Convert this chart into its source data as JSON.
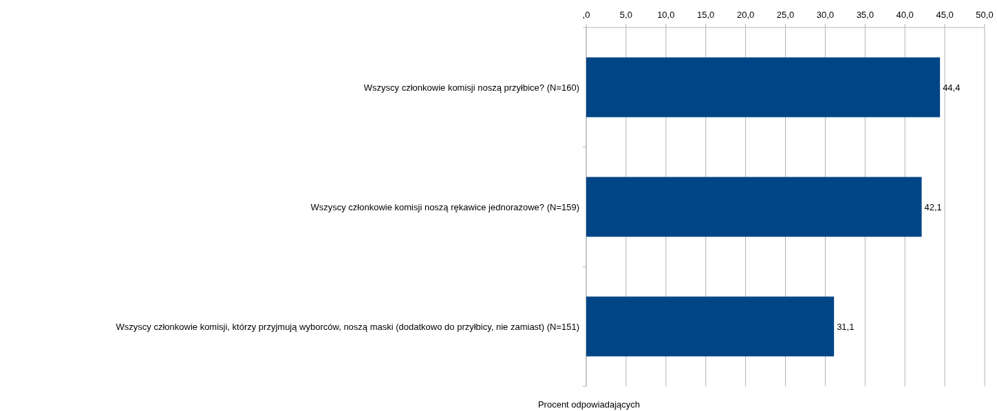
{
  "chart_data": {
    "type": "bar",
    "orientation": "horizontal",
    "xlabel": "Procent odpowiadających",
    "categories": [
      "Wszyscy członkowie komisji noszą przyłbice? (N=160)",
      "Wszyscy członkowie komisji noszą rękawice jednorazowe? (N=159)",
      "Wszyscy członkowie komisji, którzy przyjmują wyborców, noszą maski (dodatkowo do przyłbicy, nie zamiast) (N=151)"
    ],
    "values": [
      44.4,
      42.1,
      31.1
    ],
    "value_labels": [
      "44,4",
      "42,1",
      "31,1"
    ],
    "color": "#004586",
    "xlim": [
      0,
      50
    ],
    "xticks": [
      {
        "value": 0,
        "label": ",0"
      },
      {
        "value": 5,
        "label": "5,0"
      },
      {
        "value": 10,
        "label": "10,0"
      },
      {
        "value": 15,
        "label": "15,0"
      },
      {
        "value": 20,
        "label": "20,0"
      },
      {
        "value": 25,
        "label": "25,0"
      },
      {
        "value": 30,
        "label": "30,0"
      },
      {
        "value": 35,
        "label": "35,0"
      },
      {
        "value": 40,
        "label": "40,0"
      },
      {
        "value": 45,
        "label": "45,0"
      },
      {
        "value": 50,
        "label": "50,0"
      }
    ],
    "grid": "x"
  }
}
